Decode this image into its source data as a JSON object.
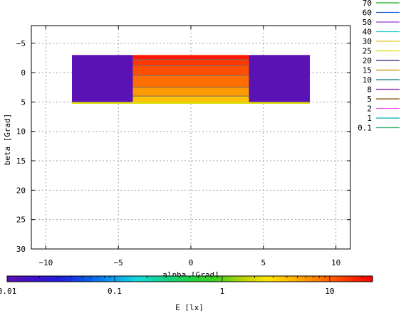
{
  "chart_data": {
    "type": "heatmap",
    "title": "",
    "xlabel": "alpha [Grad]",
    "ylabel": "beta [Grad]",
    "xlim": [
      -11,
      11
    ],
    "ylim": [
      -8,
      30
    ],
    "y_reversed": true,
    "x_ticks": [
      -10,
      -5,
      0,
      5,
      10
    ],
    "x_tick_labels": [
      "−10",
      "−5",
      "0",
      "5",
      "10"
    ],
    "y_ticks": [
      -5,
      0,
      5,
      10,
      15,
      20,
      25,
      30
    ],
    "y_tick_labels": [
      "−5",
      "0",
      "5",
      "10",
      "15",
      "20",
      "25",
      "30"
    ],
    "grid": true,
    "scale": "log",
    "legend_position": "right",
    "contour_legend": [
      {
        "label": "70",
        "color": "#22aa22"
      },
      {
        "label": "60",
        "color": "#2266dd"
      },
      {
        "label": "50",
        "color": "#9933cc"
      },
      {
        "label": "40",
        "color": "#22cccc"
      },
      {
        "label": "30",
        "color": "#ddcc22"
      },
      {
        "label": "25",
        "color": "#dddd00"
      },
      {
        "label": "20",
        "color": "#222288"
      },
      {
        "label": "15",
        "color": "#cc8800"
      },
      {
        "label": "10",
        "color": "#007788"
      },
      {
        "label": "8",
        "color": "#8822aa"
      },
      {
        "label": "5",
        "color": "#885500"
      },
      {
        "label": "2",
        "color": "#ee66ee"
      },
      {
        "label": "1",
        "color": "#00aaaa"
      },
      {
        "label": "0.1",
        "color": "#22aa66"
      }
    ],
    "regions": [
      {
        "x": [
          -8.2,
          -4
        ],
        "y": [
          -3,
          5
        ],
        "value": 0.01
      },
      {
        "x": [
          4,
          8.2
        ],
        "y": [
          -3,
          5
        ],
        "value": 0.01
      },
      {
        "x": [
          -8.2,
          8.2
        ],
        "y": [
          5,
          5.3
        ],
        "value": 2
      },
      {
        "x": [
          -4,
          4
        ],
        "y": [
          -3,
          -2.2
        ],
        "value": 20
      },
      {
        "x": [
          -4,
          4
        ],
        "y": [
          -2.2,
          -1.2
        ],
        "value": 15
      },
      {
        "x": [
          -4,
          4
        ],
        "y": [
          -1.2,
          0.5
        ],
        "value": 12
      },
      {
        "x": [
          -4,
          4
        ],
        "y": [
          0.5,
          2.5
        ],
        "value": 9
      },
      {
        "x": [
          -4,
          4
        ],
        "y": [
          2.5,
          4
        ],
        "value": 6
      },
      {
        "x": [
          -4,
          4
        ],
        "y": [
          4,
          5
        ],
        "value": 4
      }
    ],
    "colorbar": {
      "label": "E [lx]",
      "min": 0.01,
      "max": 25,
      "tick_values": [
        0.01,
        0.1,
        1,
        10
      ],
      "tick_labels": [
        "0.01",
        "0.1",
        "1",
        "10"
      ],
      "colors": [
        "#5a12b4",
        "#3c10c8",
        "#1e1edc",
        "#0a55e8",
        "#0a9bf0",
        "#14dcdc",
        "#14d28c",
        "#1ed246",
        "#3cd21e",
        "#b4d20a",
        "#ffe600",
        "#ffb400",
        "#ff7800",
        "#ff3c00",
        "#ff0000"
      ]
    }
  }
}
